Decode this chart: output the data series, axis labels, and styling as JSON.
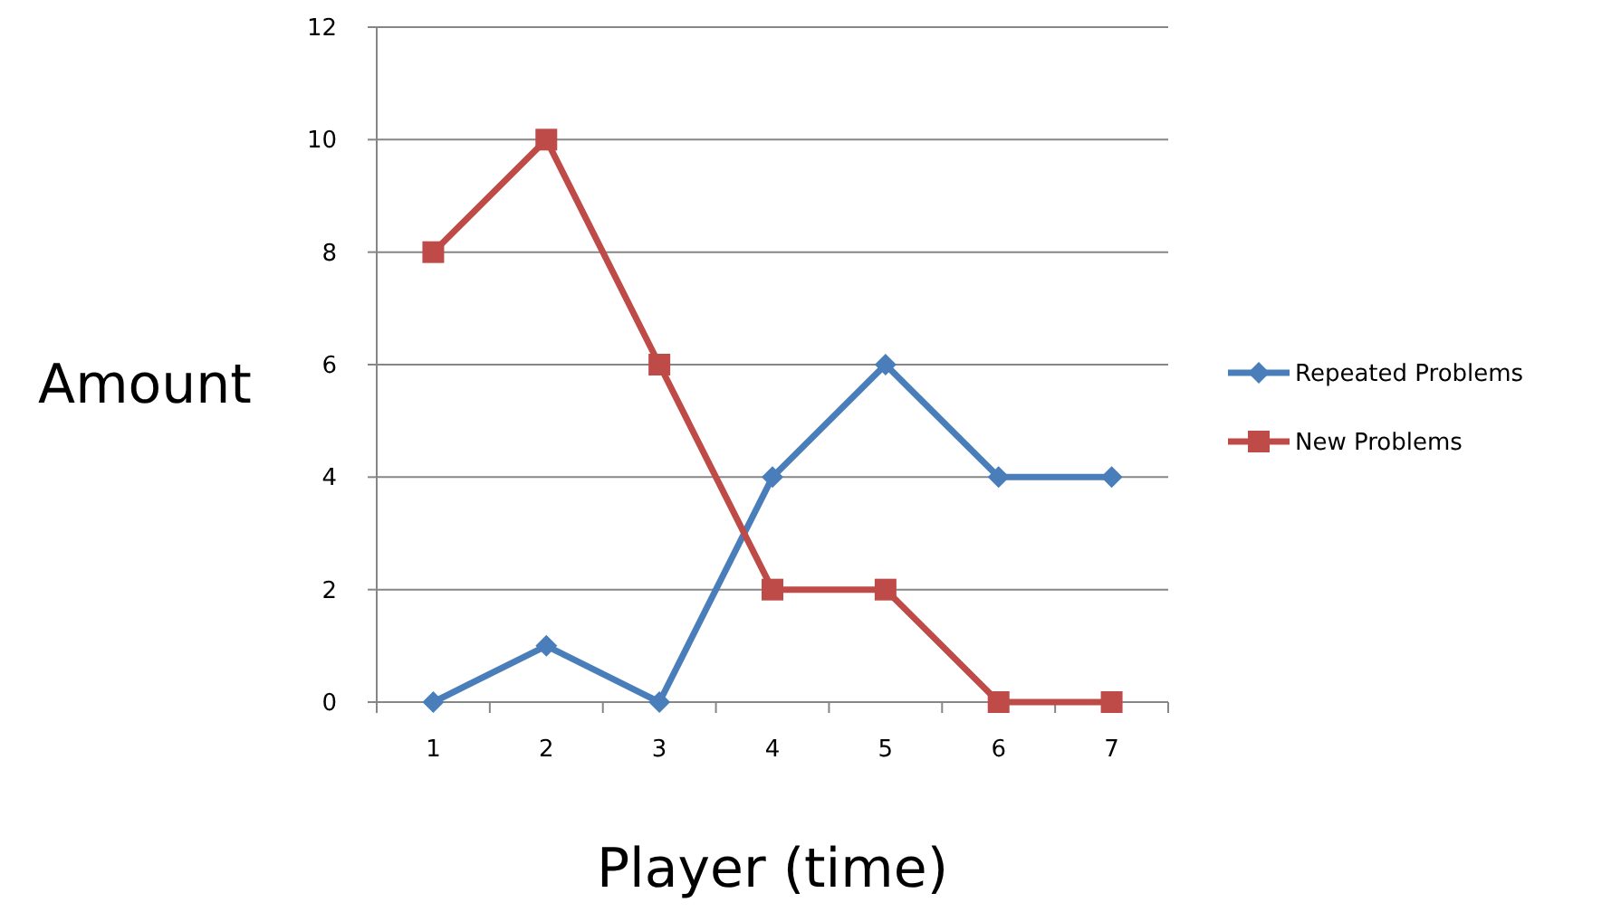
{
  "chart_data": {
    "type": "line",
    "xlabel": "Player (time)",
    "ylabel": "Amount",
    "categories": [
      "1",
      "2",
      "3",
      "4",
      "5",
      "6",
      "7"
    ],
    "series": [
      {
        "name": "Repeated Problems",
        "color": "#4a7ebb",
        "marker": "diamond",
        "values": [
          0,
          1,
          0,
          4,
          6,
          4,
          4
        ]
      },
      {
        "name": "New Problems",
        "color": "#be4b48",
        "marker": "square",
        "values": [
          8,
          10,
          6,
          2,
          2,
          0,
          0
        ]
      }
    ],
    "ylim": [
      0,
      12
    ],
    "yticks": [
      0,
      2,
      4,
      6,
      8,
      10,
      12
    ],
    "grid": "y",
    "legend": "right"
  }
}
